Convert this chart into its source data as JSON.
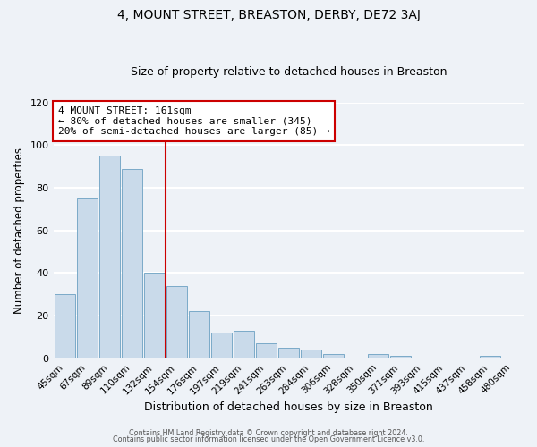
{
  "title": "4, MOUNT STREET, BREASTON, DERBY, DE72 3AJ",
  "subtitle": "Size of property relative to detached houses in Breaston",
  "xlabel": "Distribution of detached houses by size in Breaston",
  "ylabel": "Number of detached properties",
  "bar_labels": [
    "45sqm",
    "67sqm",
    "89sqm",
    "110sqm",
    "132sqm",
    "154sqm",
    "176sqm",
    "197sqm",
    "219sqm",
    "241sqm",
    "263sqm",
    "284sqm",
    "306sqm",
    "328sqm",
    "350sqm",
    "371sqm",
    "393sqm",
    "415sqm",
    "437sqm",
    "458sqm",
    "480sqm"
  ],
  "bar_values": [
    30,
    75,
    95,
    89,
    40,
    34,
    22,
    12,
    13,
    7,
    5,
    4,
    2,
    0,
    2,
    1,
    0,
    0,
    0,
    1,
    0
  ],
  "bar_color": "#c9daea",
  "bar_edge_color": "#7aaac8",
  "vline_x_index": 5,
  "vline_color": "#cc0000",
  "annotation_line1": "4 MOUNT STREET: 161sqm",
  "annotation_line2": "← 80% of detached houses are smaller (345)",
  "annotation_line3": "20% of semi-detached houses are larger (85) →",
  "annotation_box_color": "#ffffff",
  "annotation_box_edge": "#cc0000",
  "ylim": [
    0,
    120
  ],
  "yticks": [
    0,
    20,
    40,
    60,
    80,
    100,
    120
  ],
  "footer1": "Contains HM Land Registry data © Crown copyright and database right 2024.",
  "footer2": "Contains public sector information licensed under the Open Government Licence v3.0.",
  "bg_color": "#eef2f7",
  "grid_color": "#ffffff",
  "title_fontsize": 10,
  "subtitle_fontsize": 9
}
